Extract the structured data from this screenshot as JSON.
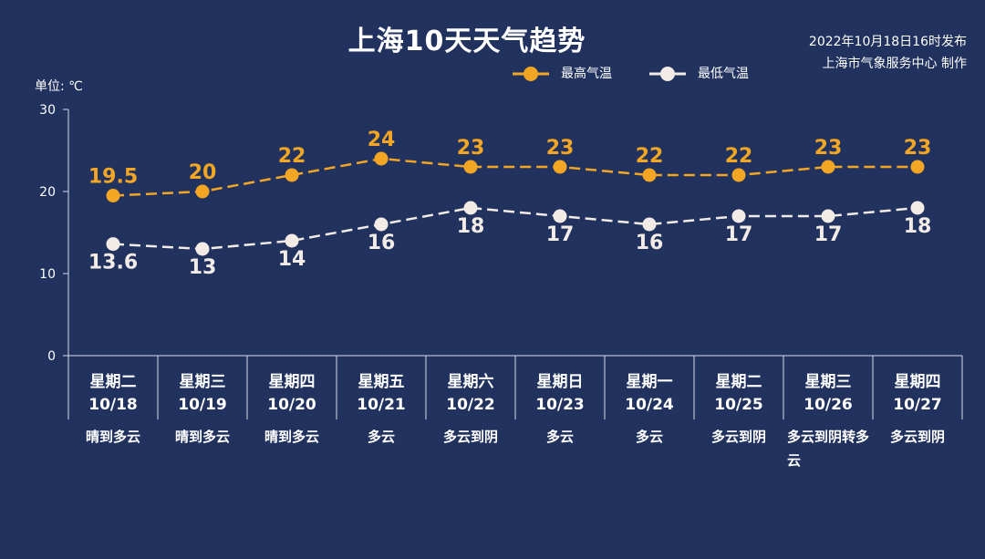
{
  "header": {
    "title": "上海10天天气趋势",
    "publish_line1": "2022年10月18日16时发布",
    "publish_line2": "上海市气象服务中心 制作"
  },
  "unit_label": "单位: ℃",
  "legend": {
    "high": "最高气温",
    "low": "最低气温"
  },
  "colors": {
    "background": "#22325f",
    "high": "#f3a623",
    "low": "#f3ece6",
    "axis": "#d8dce8"
  },
  "chart_data": {
    "type": "line",
    "title": "上海10天天气趋势",
    "ylabel": "单位: ℃",
    "ylim": [
      0,
      30
    ],
    "yticks": [
      0,
      10,
      20,
      30
    ],
    "grid": false,
    "legend_position": "top-right",
    "categories": [
      "10/18",
      "10/19",
      "10/20",
      "10/21",
      "10/22",
      "10/23",
      "10/24",
      "10/25",
      "10/26",
      "10/27"
    ],
    "weekdays": [
      "星期二",
      "星期三",
      "星期四",
      "星期五",
      "星期六",
      "星期日",
      "星期一",
      "星期二",
      "星期三",
      "星期四"
    ],
    "weather": [
      "晴到多云",
      "晴到多云",
      "晴到多云",
      "多云",
      "多云到阴",
      "多云",
      "多云",
      "多云到阴",
      "多云到阴转多云",
      "多云到阴"
    ],
    "series": [
      {
        "name": "最高气温",
        "values": [
          19.5,
          20,
          22,
          24,
          23,
          23,
          22,
          22,
          23,
          23
        ],
        "labels": [
          "19.5",
          "20",
          "22",
          "24",
          "23",
          "23",
          "22",
          "22",
          "23",
          "23"
        ]
      },
      {
        "name": "最低气温",
        "values": [
          13.6,
          13,
          14,
          16,
          18,
          17,
          16,
          17,
          17,
          18
        ],
        "labels": [
          "13.6",
          "13",
          "14",
          "16",
          "18",
          "17",
          "16",
          "17",
          "17",
          "18"
        ]
      }
    ]
  }
}
